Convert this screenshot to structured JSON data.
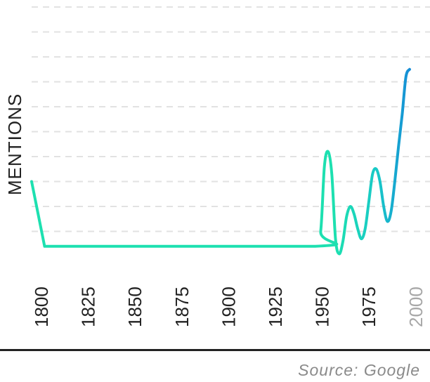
{
  "chart_data": {
    "type": "line",
    "xlabel": "",
    "ylabel": "MENTIONS",
    "xlim": [
      1793,
      2008
    ],
    "ylim": [
      0,
      10
    ],
    "grid": {
      "horizontal": true,
      "style": "dashed",
      "lines": [
        1,
        2,
        3,
        4,
        5,
        6,
        7,
        8,
        9,
        10
      ]
    },
    "x_ticks": [
      {
        "label": "1800",
        "muted": false
      },
      {
        "label": "1825",
        "muted": false
      },
      {
        "label": "1850",
        "muted": false
      },
      {
        "label": "1875",
        "muted": false
      },
      {
        "label": "1900",
        "muted": false
      },
      {
        "label": "1925",
        "muted": false
      },
      {
        "label": "1950",
        "muted": false
      },
      {
        "label": "1975",
        "muted": false
      },
      {
        "label": "2000",
        "muted": true
      }
    ],
    "series": [
      {
        "colors": {
          "start": "#1de0b0",
          "mid": "#18c8c8",
          "end": "#1466e0"
        },
        "points": [
          [
            1793,
            3.0
          ],
          [
            1800,
            0.4
          ],
          [
            1946,
            0.4
          ],
          [
            1949,
            1.0
          ],
          [
            1951,
            3.6
          ],
          [
            1953,
            4.2
          ],
          [
            1955,
            3.3
          ],
          [
            1957,
            0.7
          ],
          [
            1959,
            0.1
          ],
          [
            1961,
            0.6
          ],
          [
            1963,
            1.6
          ],
          [
            1965,
            2.0
          ],
          [
            1967,
            1.7
          ],
          [
            1969,
            1.1
          ],
          [
            1971,
            0.7
          ],
          [
            1973,
            1.1
          ],
          [
            1975,
            2.2
          ],
          [
            1977,
            3.3
          ],
          [
            1979,
            3.5
          ],
          [
            1981,
            3.0
          ],
          [
            1983,
            2.0
          ],
          [
            1985,
            1.4
          ],
          [
            1987,
            1.8
          ],
          [
            1989,
            3.0
          ],
          [
            1991,
            4.4
          ],
          [
            1993,
            5.7
          ],
          [
            1995,
            7.2
          ],
          [
            1997,
            7.5
          ]
        ]
      }
    ]
  },
  "source": "Source: Google"
}
